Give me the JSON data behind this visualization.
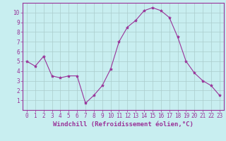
{
  "x": [
    0,
    1,
    2,
    3,
    4,
    5,
    6,
    7,
    8,
    9,
    10,
    11,
    12,
    13,
    14,
    15,
    16,
    17,
    18,
    19,
    20,
    21,
    22,
    23
  ],
  "y": [
    5.0,
    4.5,
    5.5,
    3.5,
    3.3,
    3.5,
    3.5,
    0.7,
    1.5,
    2.5,
    4.2,
    7.0,
    8.5,
    9.2,
    10.2,
    10.5,
    10.2,
    9.5,
    7.5,
    5.0,
    3.8,
    3.0,
    2.5,
    1.5
  ],
  "line_color": "#993399",
  "marker": "*",
  "marker_size": 3,
  "bg_color": "#c8eef0",
  "grid_color": "#aacccc",
  "xlabel": "Windchill (Refroidissement éolien,°C)",
  "xlabel_fontsize": 6.5,
  "xlim": [
    -0.5,
    23.5
  ],
  "ylim": [
    0,
    11
  ],
  "yticks": [
    1,
    2,
    3,
    4,
    5,
    6,
    7,
    8,
    9,
    10
  ],
  "xticks": [
    0,
    1,
    2,
    3,
    4,
    5,
    6,
    7,
    8,
    9,
    10,
    11,
    12,
    13,
    14,
    15,
    16,
    17,
    18,
    19,
    20,
    21,
    22,
    23
  ],
  "tick_color": "#993399",
  "tick_fontsize": 5.5,
  "border_color": "#993399"
}
